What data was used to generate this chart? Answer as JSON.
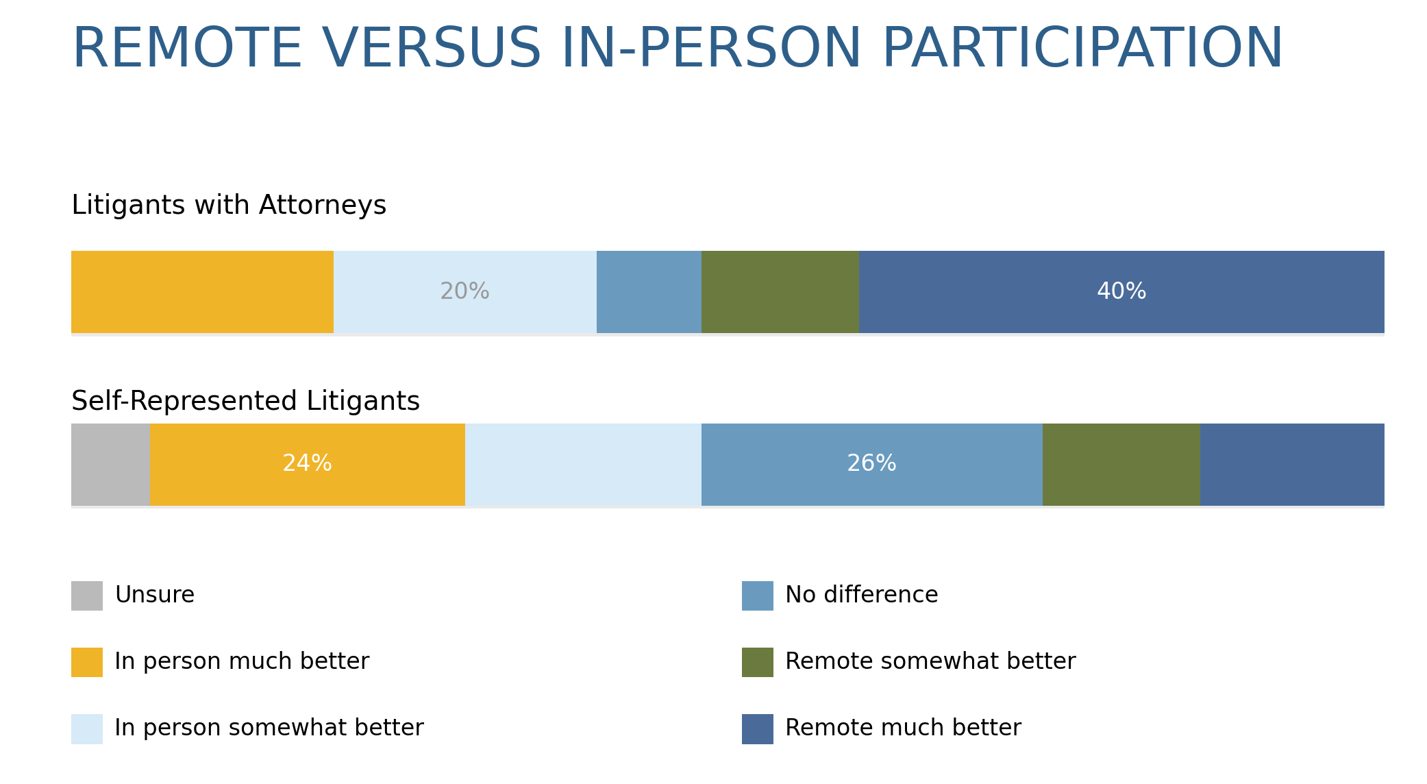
{
  "title": "REMOTE VERSUS IN-PERSON PARTICIPATION",
  "title_color": "#2E5F8A",
  "title_fontsize": 58,
  "background_color": "#ffffff",
  "bars": [
    {
      "label": "Litigants with Attorneys",
      "label_fontsize": 28,
      "segments": [
        {
          "category": "In person much better",
          "value": 20,
          "color": "#F0B429",
          "text": null,
          "text_color": null
        },
        {
          "category": "In person somewhat better",
          "value": 20,
          "color": "#D6EAF8",
          "text": "20%",
          "text_color": "#999999"
        },
        {
          "category": "No difference",
          "value": 8,
          "color": "#6A9BBF",
          "text": null,
          "text_color": null
        },
        {
          "category": "Remote somewhat better",
          "value": 12,
          "color": "#6B7A3E",
          "text": null,
          "text_color": null
        },
        {
          "category": "Remote much better",
          "value": 40,
          "color": "#4A6B9A",
          "text": "40%",
          "text_color": "#ffffff"
        }
      ]
    },
    {
      "label": "Self-Represented Litigants",
      "label_fontsize": 28,
      "segments": [
        {
          "category": "Unsure",
          "value": 6,
          "color": "#BABABA",
          "text": null,
          "text_color": null
        },
        {
          "category": "In person much better",
          "value": 24,
          "color": "#F0B429",
          "text": "24%",
          "text_color": "#ffffff"
        },
        {
          "category": "In person somewhat better",
          "value": 18,
          "color": "#D6EAF8",
          "text": null,
          "text_color": null
        },
        {
          "category": "No difference",
          "value": 26,
          "color": "#6A9BBF",
          "text": "26%",
          "text_color": "#ffffff"
        },
        {
          "category": "Remote somewhat better",
          "value": 12,
          "color": "#6B7A3E",
          "text": null,
          "text_color": null
        },
        {
          "category": "Remote much better",
          "value": 14,
          "color": "#4A6B9A",
          "text": null,
          "text_color": null
        }
      ]
    }
  ],
  "legend": [
    {
      "label": "Unsure",
      "color": "#BABABA"
    },
    {
      "label": "In person much better",
      "color": "#F0B429"
    },
    {
      "label": "In person somewhat better",
      "color": "#D6EAF8"
    },
    {
      "label": "No difference",
      "color": "#6A9BBF"
    },
    {
      "label": "Remote somewhat better",
      "color": "#6B7A3E"
    },
    {
      "label": "Remote much better",
      "color": "#4A6B9A"
    }
  ],
  "bar_label_fontsize": 24,
  "legend_fontsize": 24
}
